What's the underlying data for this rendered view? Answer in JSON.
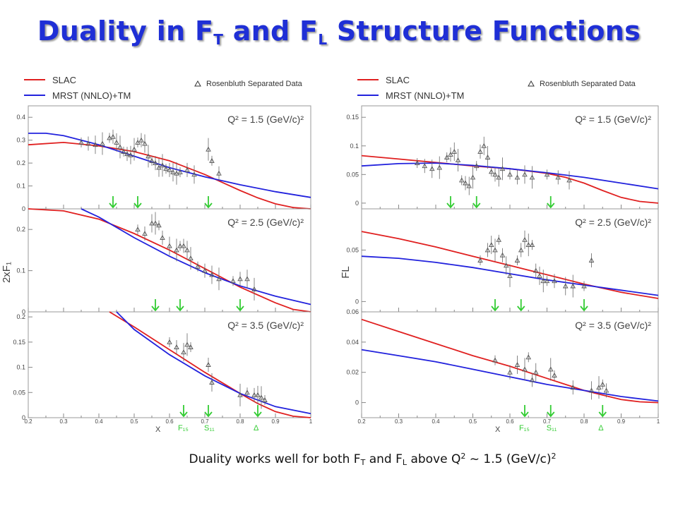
{
  "slide": {
    "title_main": "Duality in F",
    "title_sub1": "T",
    "title_and": " and F",
    "title_sub2": "L",
    "title_tail": " Structure Functions"
  },
  "caption": {
    "part1": "Duality works well for both F",
    "sub1": "T",
    "part2": " and F",
    "sub2": "L",
    "part3": " above Q",
    "sup1": "2",
    "part4": " ~ 1.5 (GeV/c)",
    "sup2": "2"
  },
  "legend": {
    "slac": "SLAC",
    "mrst": "MRST (NNLO)+TM",
    "data": "Rosenbluth Separated Data"
  },
  "colors": {
    "slac": "#e02020",
    "mrst": "#2222dd",
    "arrow": "#33cc33",
    "data": "#666666"
  },
  "resonance_labels": [
    "F₁₅",
    "S₁₁",
    "Δ"
  ],
  "chart_data": [
    {
      "type": "line",
      "name": "F_T",
      "ylabel": "2xF₁",
      "xlabel": "X",
      "xlim": [
        0.2,
        1.0
      ],
      "x_ticks": [
        "0.2",
        "0.3",
        "0.4",
        "0.5",
        "0.6",
        "0.7",
        "0.8",
        "0.9",
        "1"
      ],
      "subplots": [
        {
          "q2_label": "Q² = 1.5 (GeV/c)²",
          "ylim": [
            0,
            0.45
          ],
          "y_ticks": [
            0,
            0.1,
            0.2,
            0.3,
            0.4
          ],
          "arrows_x": [
            0.44,
            0.51,
            0.71
          ],
          "slac": {
            "x": [
              0.2,
              0.3,
              0.4,
              0.5,
              0.6,
              0.7,
              0.75,
              0.8,
              0.85,
              0.9,
              0.95,
              1.0
            ],
            "y": [
              0.28,
              0.29,
              0.275,
              0.25,
              0.21,
              0.15,
              0.115,
              0.08,
              0.048,
              0.022,
              0.006,
              0.0
            ]
          },
          "mrst": {
            "x": [
              0.2,
              0.25,
              0.3,
              0.4,
              0.5,
              0.6,
              0.7,
              0.8,
              0.9,
              1.0
            ],
            "y": [
              0.33,
              0.33,
              0.32,
              0.28,
              0.23,
              0.18,
              0.14,
              0.105,
              0.075,
              0.05
            ]
          },
          "data": {
            "x": [
              0.35,
              0.37,
              0.39,
              0.41,
              0.43,
              0.44,
              0.45,
              0.46,
              0.47,
              0.48,
              0.49,
              0.5,
              0.51,
              0.52,
              0.53,
              0.54,
              0.55,
              0.56,
              0.57,
              0.58,
              0.59,
              0.6,
              0.61,
              0.62,
              0.63,
              0.65,
              0.67,
              0.71,
              0.72,
              0.74
            ],
            "y": [
              0.29,
              0.285,
              0.28,
              0.285,
              0.31,
              0.315,
              0.29,
              0.27,
              0.25,
              0.24,
              0.235,
              0.26,
              0.29,
              0.3,
              0.285,
              0.23,
              0.21,
              0.2,
              0.18,
              0.19,
              0.175,
              0.17,
              0.16,
              0.155,
              0.16,
              0.17,
              0.15,
              0.26,
              0.21,
              0.155
            ]
          }
        },
        {
          "q2_label": "Q² = 2.5 (GeV/c)²",
          "ylim": [
            0,
            0.25
          ],
          "y_ticks": [
            0,
            0.1,
            0.2
          ],
          "arrows_x": [
            0.56,
            0.63,
            0.8
          ],
          "slac": {
            "x": [
              0.2,
              0.3,
              0.4,
              0.5,
              0.6,
              0.7,
              0.8,
              0.9,
              0.95,
              1.0
            ],
            "y": [
              0.25,
              0.245,
              0.225,
              0.19,
              0.15,
              0.105,
              0.06,
              0.022,
              0.006,
              0.0
            ]
          },
          "mrst": {
            "x": [
              0.35,
              0.4,
              0.5,
              0.6,
              0.7,
              0.8,
              0.9,
              1.0
            ],
            "y": [
              0.25,
              0.23,
              0.18,
              0.135,
              0.095,
              0.063,
              0.038,
              0.018
            ]
          },
          "data": {
            "x": [
              0.51,
              0.53,
              0.55,
              0.56,
              0.57,
              0.58,
              0.6,
              0.62,
              0.63,
              0.64,
              0.65,
              0.66,
              0.68,
              0.7,
              0.72,
              0.74,
              0.78,
              0.8,
              0.82,
              0.84
            ],
            "y": [
              0.2,
              0.19,
              0.215,
              0.215,
              0.21,
              0.18,
              0.16,
              0.15,
              0.16,
              0.16,
              0.15,
              0.13,
              0.11,
              0.1,
              0.09,
              0.08,
              0.075,
              0.08,
              0.08,
              0.055
            ]
          }
        },
        {
          "q2_label": "Q² = 3.5 (GeV/c)²",
          "ylim": [
            0,
            0.21
          ],
          "y_ticks": [
            0,
            0.05,
            0.1,
            0.15,
            0.2
          ],
          "arrows_x": [
            0.64,
            0.71,
            0.85
          ],
          "slac": {
            "x": [
              0.43,
              0.5,
              0.6,
              0.7,
              0.8,
              0.85,
              0.9,
              0.95,
              1.0
            ],
            "y": [
              0.21,
              0.18,
              0.135,
              0.09,
              0.048,
              0.028,
              0.012,
              0.003,
              0.0
            ]
          },
          "mrst": {
            "x": [
              0.45,
              0.5,
              0.6,
              0.7,
              0.8,
              0.9,
              1.0
            ],
            "y": [
              0.21,
              0.175,
              0.125,
              0.083,
              0.048,
              0.022,
              0.008
            ]
          },
          "data": {
            "x": [
              0.6,
              0.62,
              0.64,
              0.65,
              0.66,
              0.71,
              0.72,
              0.8,
              0.82,
              0.84,
              0.85,
              0.86,
              0.87
            ],
            "y": [
              0.15,
              0.14,
              0.13,
              0.145,
              0.14,
              0.105,
              0.07,
              0.045,
              0.05,
              0.045,
              0.045,
              0.04,
              0.035
            ]
          }
        }
      ]
    },
    {
      "type": "line",
      "name": "F_L",
      "ylabel": "F_L",
      "xlabel": "X",
      "xlim": [
        0.2,
        1.0
      ],
      "x_ticks": [
        "0.2",
        "0.3",
        "0.4",
        "0.5",
        "0.6",
        "0.7",
        "0.8",
        "0.9",
        "1"
      ],
      "subplots": [
        {
          "q2_label": "Q² = 1.5 (GeV/c)²",
          "ylim": [
            -0.01,
            0.17
          ],
          "y_ticks": [
            0,
            0.05,
            0.1,
            0.15
          ],
          "arrows_x": [
            0.44,
            0.51,
            0.71
          ],
          "slac": {
            "x": [
              0.2,
              0.3,
              0.4,
              0.5,
              0.6,
              0.7,
              0.75,
              0.8,
              0.85,
              0.9,
              0.95,
              1.0
            ],
            "y": [
              0.083,
              0.077,
              0.071,
              0.065,
              0.06,
              0.052,
              0.045,
              0.035,
              0.022,
              0.01,
              0.003,
              0.0
            ]
          },
          "mrst": {
            "x": [
              0.2,
              0.3,
              0.4,
              0.5,
              0.6,
              0.7,
              0.8,
              0.9,
              1.0
            ],
            "y": [
              0.065,
              0.069,
              0.07,
              0.066,
              0.06,
              0.053,
              0.045,
              0.035,
              0.025
            ]
          },
          "data": {
            "x": [
              0.35,
              0.37,
              0.39,
              0.41,
              0.43,
              0.44,
              0.45,
              0.46,
              0.47,
              0.48,
              0.49,
              0.5,
              0.51,
              0.52,
              0.53,
              0.54,
              0.55,
              0.56,
              0.57,
              0.58,
              0.6,
              0.62,
              0.64,
              0.66,
              0.7,
              0.73,
              0.76
            ],
            "y": [
              0.07,
              0.065,
              0.06,
              0.062,
              0.08,
              0.085,
              0.09,
              0.075,
              0.04,
              0.035,
              0.03,
              0.045,
              0.065,
              0.09,
              0.1,
              0.08,
              0.055,
              0.05,
              0.045,
              0.06,
              0.05,
              0.045,
              0.05,
              0.045,
              0.05,
              0.045,
              0.04
            ]
          }
        },
        {
          "q2_label": "Q² = 2.5 (GeV/c)²",
          "ylim": [
            -0.01,
            0.09
          ],
          "y_ticks": [
            0,
            0.05
          ],
          "arrows_x": [
            0.56,
            0.63,
            0.8
          ],
          "slac": {
            "x": [
              0.2,
              0.3,
              0.4,
              0.5,
              0.6,
              0.7,
              0.8,
              0.9,
              1.0
            ],
            "y": [
              0.068,
              0.061,
              0.053,
              0.044,
              0.035,
              0.026,
              0.017,
              0.009,
              0.003
            ]
          },
          "mrst": {
            "x": [
              0.2,
              0.3,
              0.4,
              0.5,
              0.6,
              0.7,
              0.8,
              0.9,
              1.0
            ],
            "y": [
              0.044,
              0.042,
              0.038,
              0.033,
              0.027,
              0.021,
              0.016,
              0.011,
              0.006
            ]
          },
          "data": {
            "x": [
              0.52,
              0.54,
              0.55,
              0.56,
              0.57,
              0.58,
              0.59,
              0.6,
              0.62,
              0.63,
              0.64,
              0.65,
              0.66,
              0.67,
              0.68,
              0.69,
              0.7,
              0.72,
              0.75,
              0.77,
              0.8,
              0.82
            ],
            "y": [
              0.04,
              0.05,
              0.055,
              0.05,
              0.06,
              0.045,
              0.035,
              0.025,
              0.04,
              0.05,
              0.06,
              0.055,
              0.055,
              0.03,
              0.025,
              0.02,
              0.02,
              0.02,
              0.015,
              0.015,
              0.015,
              0.04
            ]
          }
        },
        {
          "q2_label": "Q² = 3.5 (GeV/c)²",
          "ylim": [
            -0.01,
            0.06
          ],
          "y_ticks": [
            0,
            0.02,
            0.04,
            0.06
          ],
          "arrows_x": [
            0.64,
            0.71,
            0.85
          ],
          "slac": {
            "x": [
              0.2,
              0.3,
              0.4,
              0.5,
              0.6,
              0.7,
              0.75,
              0.8,
              0.85,
              0.9,
              0.95,
              1.0
            ],
            "y": [
              0.055,
              0.047,
              0.039,
              0.031,
              0.024,
              0.016,
              0.012,
              0.008,
              0.005,
              0.002,
              0.0005,
              0.0
            ]
          },
          "mrst": {
            "x": [
              0.2,
              0.3,
              0.4,
              0.5,
              0.6,
              0.7,
              0.8,
              0.9,
              1.0
            ],
            "y": [
              0.035,
              0.031,
              0.027,
              0.022,
              0.017,
              0.012,
              0.008,
              0.004,
              0.001
            ]
          },
          "data": {
            "x": [
              0.56,
              0.6,
              0.62,
              0.64,
              0.65,
              0.66,
              0.67,
              0.71,
              0.72,
              0.77,
              0.82,
              0.84,
              0.85,
              0.86
            ],
            "y": [
              0.028,
              0.02,
              0.025,
              0.022,
              0.03,
              0.015,
              0.02,
              0.022,
              0.018,
              0.01,
              0.008,
              0.01,
              0.012,
              0.008
            ]
          }
        }
      ]
    }
  ]
}
